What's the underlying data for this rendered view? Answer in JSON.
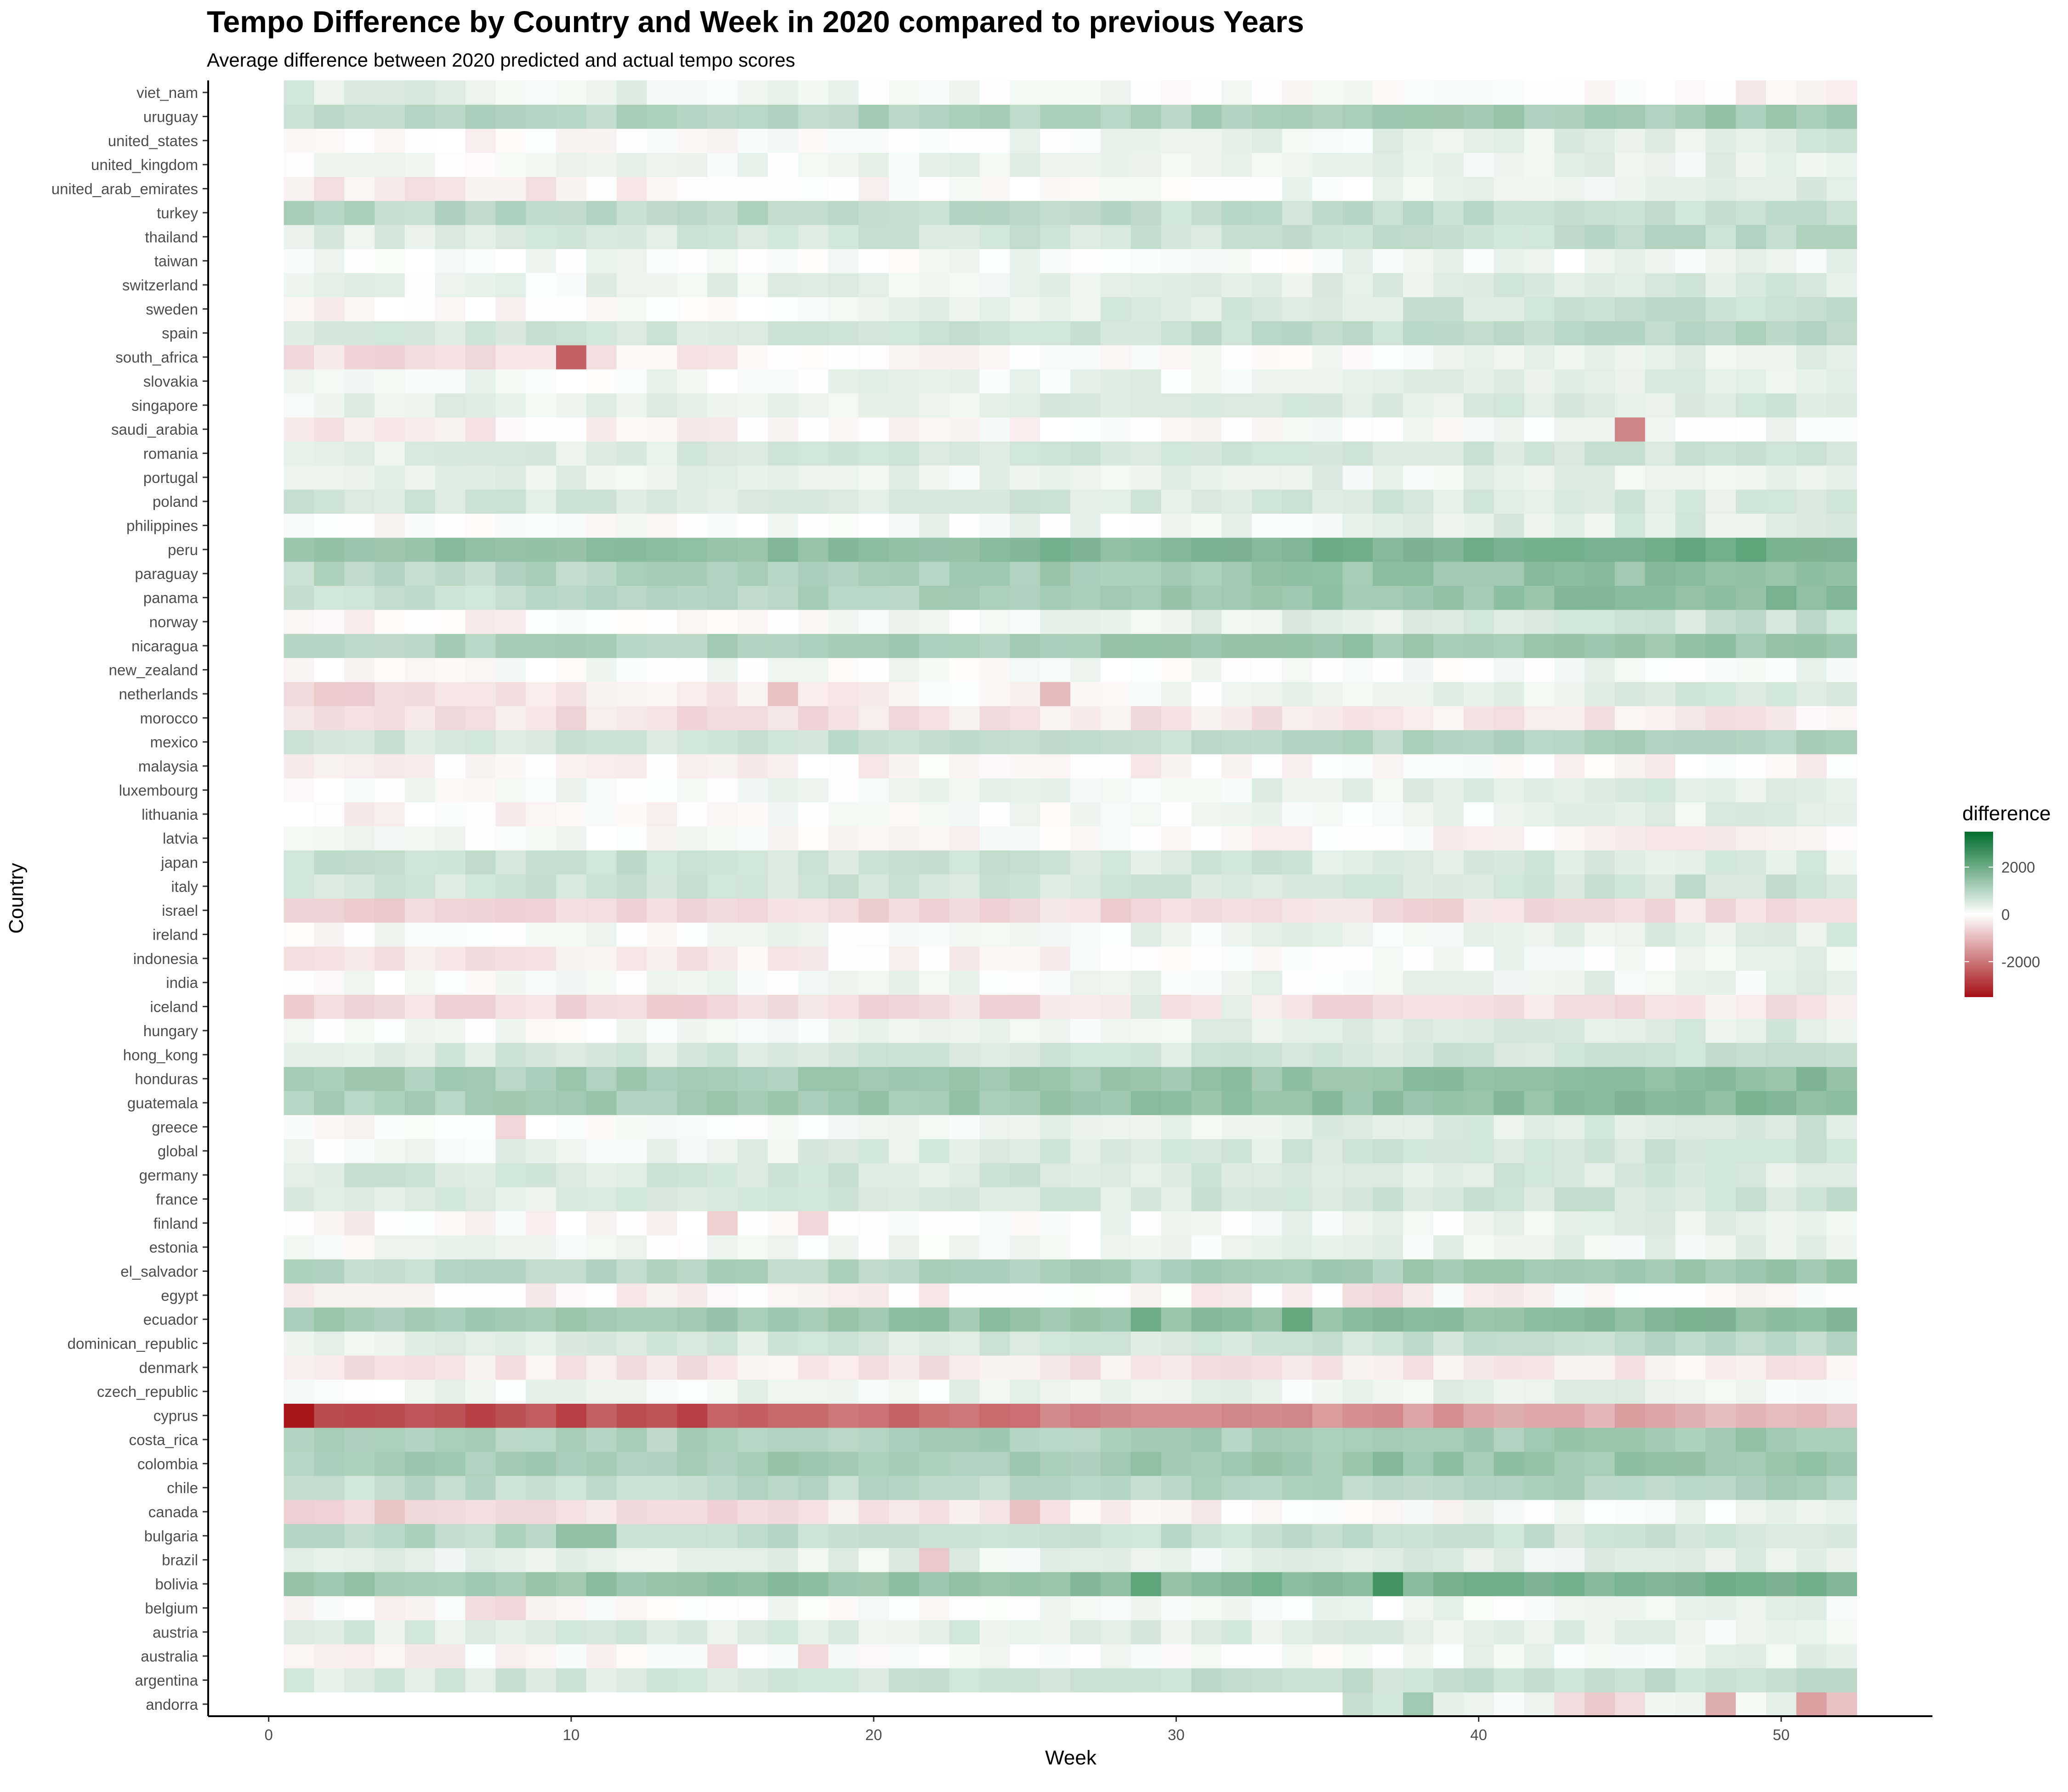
{
  "chart_data": {
    "type": "heatmap",
    "title": "Tempo Difference by Country and Week in 2020 compared to previous Years",
    "subtitle": "Average difference between 2020 predicted and actual tempo scores",
    "xlabel": "Week",
    "ylabel": "Country",
    "xlim": [
      -2,
      55
    ],
    "x_ticks": [
      0,
      10,
      20,
      30,
      40,
      50
    ],
    "x_tick_labels": [
      "0",
      "10",
      "20",
      "30",
      "40",
      "50"
    ],
    "weeks": [
      1,
      52
    ],
    "countries": [
      "andorra",
      "argentina",
      "australia",
      "austria",
      "belgium",
      "bolivia",
      "brazil",
      "bulgaria",
      "canada",
      "chile",
      "colombia",
      "costa_rica",
      "cyprus",
      "czech_republic",
      "denmark",
      "dominican_republic",
      "ecuador",
      "egypt",
      "el_salvador",
      "estonia",
      "finland",
      "france",
      "germany",
      "global",
      "greece",
      "guatemala",
      "honduras",
      "hong_kong",
      "hungary",
      "iceland",
      "india",
      "indonesia",
      "ireland",
      "israel",
      "italy",
      "japan",
      "latvia",
      "lithuania",
      "luxembourg",
      "malaysia",
      "mexico",
      "morocco",
      "netherlands",
      "new_zealand",
      "nicaragua",
      "norway",
      "panama",
      "paraguay",
      "peru",
      "philippines",
      "poland",
      "portugal",
      "romania",
      "saudi_arabia",
      "singapore",
      "slovakia",
      "south_africa",
      "spain",
      "sweden",
      "switzerland",
      "taiwan",
      "thailand",
      "turkey",
      "united_arab_emirates",
      "united_kingdom",
      "united_states",
      "uruguay",
      "viet_nam"
    ],
    "country_profiles": {
      "andorra": {
        "base": 0,
        "start": 36,
        "late": 300,
        "spikes": [
          [
            36,
            800
          ],
          [
            37,
            600
          ],
          [
            38,
            1300
          ],
          [
            43,
            -500
          ],
          [
            44,
            -800
          ],
          [
            45,
            -500
          ],
          [
            46,
            200
          ],
          [
            48,
            -1200
          ],
          [
            51,
            -1400
          ],
          [
            52,
            -900
          ]
        ]
      },
      "argentina": {
        "base": 500,
        "late": 900,
        "spikes": []
      },
      "australia": {
        "base": -200,
        "late": 300,
        "spikes": [
          [
            15,
            -500
          ],
          [
            18,
            -600
          ]
        ]
      },
      "austria": {
        "base": 500,
        "late": 300,
        "spikes": []
      },
      "belgium": {
        "base": -100,
        "late": 300,
        "spikes": [
          [
            7,
            -500
          ],
          [
            8,
            -600
          ]
        ]
      },
      "bolivia": {
        "base": 1300,
        "late": 1900,
        "spikes": [
          [
            37,
            2600
          ],
          [
            29,
            2200
          ]
        ]
      },
      "brazil": {
        "base": 300,
        "late": 400,
        "spikes": [
          [
            22,
            -800
          ]
        ]
      },
      "bulgaria": {
        "base": 1000,
        "late": 600,
        "spikes": [
          [
            10,
            1500
          ],
          [
            11,
            1500
          ]
        ]
      },
      "canada": {
        "base": -700,
        "late": 200,
        "spikes": [
          [
            25,
            -900
          ],
          [
            40,
            300
          ]
        ]
      },
      "chile": {
        "base": 800,
        "late": 1100,
        "spikes": []
      },
      "colombia": {
        "base": 1200,
        "late": 1400,
        "spikes": [
          [
            37,
            1700
          ]
        ]
      },
      "costa_rica": {
        "base": 1000,
        "late": 1300,
        "spikes": []
      },
      "cyprus": {
        "base": -2800,
        "late": -1000,
        "spikes": [
          [
            1,
            -3400
          ],
          [
            10,
            -2800
          ],
          [
            14,
            -2800
          ]
        ]
      },
      "czech_republic": {
        "base": 200,
        "late": 300,
        "spikes": []
      },
      "denmark": {
        "base": -400,
        "late": -300,
        "spikes": []
      },
      "dominican_republic": {
        "base": 300,
        "late": 900,
        "spikes": []
      },
      "ecuador": {
        "base": 1200,
        "late": 1700,
        "spikes": [
          [
            29,
            2000
          ],
          [
            34,
            2100
          ]
        ]
      },
      "egypt": {
        "base": -200,
        "late": -100,
        "spikes": [
          [
            36,
            -500
          ],
          [
            37,
            -600
          ]
        ]
      },
      "el_salvador": {
        "base": 900,
        "late": 1300,
        "spikes": []
      },
      "estonia": {
        "base": 100,
        "late": 300,
        "spikes": []
      },
      "finland": {
        "base": -200,
        "late": 400,
        "spikes": [
          [
            15,
            -700
          ],
          [
            18,
            -600
          ]
        ]
      },
      "france": {
        "base": 400,
        "late": 700,
        "spikes": []
      },
      "germany": {
        "base": 600,
        "late": 500,
        "spikes": [
          [
            3,
            800
          ]
        ]
      },
      "global": {
        "base": 200,
        "late": 700,
        "spikes": []
      },
      "greece": {
        "base": -100,
        "late": 600,
        "spikes": [
          [
            8,
            -600
          ]
        ]
      },
      "guatemala": {
        "base": 1100,
        "late": 1700,
        "spikes": []
      },
      "honduras": {
        "base": 1100,
        "late": 1600,
        "spikes": []
      },
      "hong_kong": {
        "base": 500,
        "late": 700,
        "spikes": []
      },
      "hungary": {
        "base": 0,
        "late": 500,
        "spikes": []
      },
      "iceland": {
        "base": -600,
        "late": -400,
        "spikes": [
          [
            29,
            500
          ],
          [
            32,
            400
          ]
        ]
      },
      "india": {
        "base": 100,
        "late": 300,
        "spikes": []
      },
      "indonesia": {
        "base": -500,
        "late": 300,
        "spikes": []
      },
      "ireland": {
        "base": 0,
        "late": 400,
        "spikes": []
      },
      "israel": {
        "base": -600,
        "late": -500,
        "spikes": []
      },
      "italy": {
        "base": 600,
        "late": 700,
        "spikes": []
      },
      "japan": {
        "base": 800,
        "late": 400,
        "spikes": []
      },
      "latvia": {
        "base": 100,
        "late": -200,
        "spikes": []
      },
      "lithuania": {
        "base": -200,
        "late": 400,
        "spikes": []
      },
      "luxembourg": {
        "base": 0,
        "late": 500,
        "spikes": []
      },
      "malaysia": {
        "base": -200,
        "late": -100,
        "spikes": []
      },
      "mexico": {
        "base": 600,
        "late": 1100,
        "spikes": []
      },
      "morocco": {
        "base": -500,
        "late": -300,
        "spikes": []
      },
      "netherlands": {
        "base": -600,
        "late": 600,
        "spikes": [
          [
            26,
            -1000
          ],
          [
            17,
            -900
          ]
        ]
      },
      "new_zealand": {
        "base": 0,
        "late": 200,
        "spikes": []
      },
      "nicaragua": {
        "base": 1000,
        "late": 1500,
        "spikes": []
      },
      "norway": {
        "base": -300,
        "late": 800,
        "spikes": []
      },
      "panama": {
        "base": 700,
        "late": 1700,
        "spikes": []
      },
      "paraguay": {
        "base": 900,
        "late": 1600,
        "spikes": []
      },
      "peru": {
        "base": 1400,
        "late": 2000,
        "spikes": []
      },
      "philippines": {
        "base": -100,
        "late": 500,
        "spikes": []
      },
      "poland": {
        "base": 600,
        "late": 500,
        "spikes": []
      },
      "portugal": {
        "base": 300,
        "late": 300,
        "spikes": []
      },
      "romania": {
        "base": 400,
        "late": 700,
        "spikes": []
      },
      "saudi_arabia": {
        "base": -300,
        "late": 200,
        "spikes": [
          [
            45,
            -1800
          ]
        ]
      },
      "singapore": {
        "base": 300,
        "late": 500,
        "spikes": []
      },
      "slovakia": {
        "base": 100,
        "late": 400,
        "spikes": []
      },
      "south_africa": {
        "base": -500,
        "late": 400,
        "spikes": [
          [
            10,
            -2300
          ]
        ]
      },
      "spain": {
        "base": 500,
        "late": 1000,
        "spikes": []
      },
      "sweden": {
        "base": -200,
        "late": 900,
        "spikes": []
      },
      "switzerland": {
        "base": 200,
        "late": 500,
        "spikes": []
      },
      "taiwan": {
        "base": 100,
        "late": 200,
        "spikes": []
      },
      "thailand": {
        "base": 400,
        "late": 900,
        "spikes": []
      },
      "turkey": {
        "base": 1000,
        "late": 700,
        "spikes": []
      },
      "united_arab_emirates": {
        "base": -400,
        "late": 400,
        "spikes": []
      },
      "united_kingdom": {
        "base": 100,
        "late": 400,
        "spikes": []
      },
      "united_states": {
        "base": -200,
        "late": 500,
        "spikes": []
      },
      "uruguay": {
        "base": 900,
        "late": 1300,
        "spikes": []
      },
      "viet_nam": {
        "base": 400,
        "late": -200,
        "spikes": []
      }
    },
    "color_scale": {
      "low": "#a50f15",
      "mid": "#ffffff",
      "high": "#006d2c",
      "limits": [
        -3500,
        3500
      ]
    },
    "legend": {
      "title": "difference",
      "breaks": [
        2000,
        0,
        -2000
      ],
      "labels": [
        "2000",
        "0",
        "-2000"
      ],
      "position": "right"
    },
    "grid": false
  }
}
